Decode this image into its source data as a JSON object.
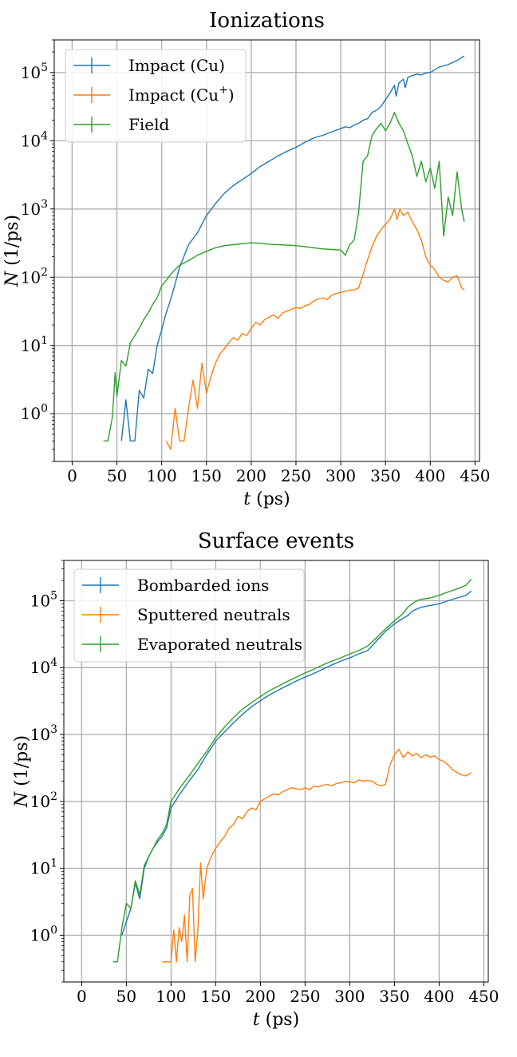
{
  "chart_data": [
    {
      "type": "line",
      "title": "Ionizations",
      "xlabel_var": "t",
      "xlabel_unit": " (ps)",
      "ylabel_var": "N",
      "ylabel_unit": " (1/ps)",
      "yscale": "log",
      "xlim": [
        -20,
        455
      ],
      "ylim": [
        0.2,
        300000
      ],
      "xticks": [
        0,
        50,
        100,
        150,
        200,
        250,
        300,
        350,
        400,
        450
      ],
      "yticks": [
        {
          "value": 1,
          "base": "10",
          "exp": "0"
        },
        {
          "value": 10,
          "base": "10",
          "exp": "1"
        },
        {
          "value": 100,
          "base": "10",
          "exp": "2"
        },
        {
          "value": 1000,
          "base": "10",
          "exp": "3"
        },
        {
          "value": 10000,
          "base": "10",
          "exp": "4"
        },
        {
          "value": 100000,
          "base": "10",
          "exp": "5"
        }
      ],
      "legend_position": "top-left",
      "series": [
        {
          "name": "Impact (Cu)",
          "legend_base": "Impact (Cu)",
          "legend_sup": "",
          "legend_tail": "",
          "color": "#1f77b4",
          "x": [
            55,
            60,
            65,
            70,
            75,
            80,
            85,
            90,
            95,
            100,
            105,
            110,
            115,
            120,
            130,
            140,
            150,
            160,
            170,
            180,
            190,
            200,
            210,
            220,
            230,
            240,
            250,
            260,
            270,
            280,
            290,
            300,
            305,
            310,
            315,
            320,
            325,
            330,
            335,
            340,
            345,
            350,
            355,
            360,
            362,
            365,
            370,
            372,
            375,
            380,
            385,
            390,
            395,
            400,
            405,
            410,
            415,
            420,
            425,
            430,
            435,
            438
          ],
          "y": [
            0.4,
            1.6,
            0.4,
            0.4,
            2.2,
            1.7,
            4.5,
            3.9,
            10,
            17,
            30,
            47,
            80,
            140,
            300,
            450,
            800,
            1200,
            1700,
            2200,
            2700,
            3300,
            4200,
            5000,
            6000,
            7000,
            8000,
            9500,
            11000,
            12000,
            13500,
            15000,
            16000,
            15500,
            17000,
            18000,
            20000,
            21000,
            26000,
            28000,
            32000,
            40000,
            50000,
            65000,
            45000,
            70000,
            80000,
            60000,
            85000,
            90000,
            95000,
            92000,
            98000,
            100000,
            110000,
            120000,
            125000,
            130000,
            140000,
            150000,
            165000,
            175000
          ]
        },
        {
          "name": "Impact (Cu+)",
          "legend_base": "Impact (Cu",
          "legend_sup": "+",
          "legend_tail": ")",
          "color": "#ff7f0e",
          "x": [
            105,
            110,
            115,
            120,
            125,
            130,
            135,
            140,
            145,
            150,
            155,
            160,
            165,
            170,
            175,
            180,
            185,
            190,
            195,
            200,
            205,
            210,
            215,
            220,
            225,
            230,
            235,
            240,
            245,
            250,
            255,
            260,
            265,
            270,
            275,
            280,
            285,
            290,
            295,
            300,
            305,
            310,
            315,
            320,
            325,
            330,
            335,
            340,
            345,
            350,
            355,
            360,
            363,
            366,
            370,
            375,
            380,
            385,
            390,
            395,
            400,
            405,
            410,
            415,
            420,
            425,
            430,
            435,
            438
          ],
          "y": [
            0.4,
            0.3,
            1.2,
            0.4,
            0.4,
            1.2,
            3.1,
            1.2,
            5.5,
            2,
            3.5,
            5.5,
            7.5,
            9,
            11,
            13,
            12,
            15,
            14,
            18,
            22,
            20,
            24,
            26,
            28,
            25,
            30,
            32,
            34,
            36,
            35,
            38,
            40,
            45,
            48,
            50,
            47,
            55,
            58,
            60,
            62,
            65,
            65,
            70,
            110,
            180,
            280,
            400,
            500,
            600,
            700,
            1000,
            700,
            1000,
            800,
            900,
            650,
            500,
            350,
            200,
            150,
            130,
            100,
            90,
            85,
            100,
            105,
            70,
            65
          ]
        },
        {
          "name": "Field",
          "legend_base": "Field",
          "legend_sup": "",
          "legend_tail": "",
          "color": "#2ca02c",
          "x": [
            35,
            40,
            45,
            48,
            50,
            55,
            60,
            65,
            70,
            75,
            80,
            85,
            90,
            95,
            100,
            105,
            110,
            115,
            120,
            130,
            140,
            150,
            160,
            170,
            180,
            190,
            200,
            210,
            220,
            230,
            240,
            250,
            260,
            270,
            280,
            290,
            300,
            305,
            310,
            315,
            320,
            325,
            330,
            335,
            340,
            345,
            350,
            355,
            360,
            365,
            370,
            375,
            380,
            385,
            390,
            395,
            400,
            405,
            410,
            415,
            420,
            425,
            430,
            435,
            438
          ],
          "y": [
            0.4,
            0.4,
            0.9,
            4,
            1.8,
            6,
            5,
            11,
            14,
            18,
            24,
            30,
            40,
            50,
            75,
            90,
            110,
            130,
            150,
            175,
            210,
            240,
            270,
            290,
            300,
            310,
            320,
            315,
            305,
            300,
            295,
            290,
            280,
            270,
            260,
            255,
            250,
            210,
            300,
            350,
            900,
            5000,
            6000,
            12000,
            15000,
            18000,
            14000,
            18000,
            26000,
            18000,
            14000,
            9000,
            6000,
            3000,
            5000,
            2500,
            4000,
            2000,
            5000,
            400,
            1500,
            800,
            3500,
            1000,
            650
          ]
        }
      ]
    },
    {
      "type": "line",
      "title": "Surface events",
      "xlabel_var": "t",
      "xlabel_unit": " (ps)",
      "ylabel_var": "N",
      "ylabel_unit": " (1/ps)",
      "yscale": "log",
      "xlim": [
        -20,
        455
      ],
      "ylim": [
        0.2,
        400000
      ],
      "xticks": [
        0,
        50,
        100,
        150,
        200,
        250,
        300,
        350,
        400,
        450
      ],
      "yticks": [
        {
          "value": 1,
          "base": "10",
          "exp": "0"
        },
        {
          "value": 10,
          "base": "10",
          "exp": "1"
        },
        {
          "value": 100,
          "base": "10",
          "exp": "2"
        },
        {
          "value": 1000,
          "base": "10",
          "exp": "3"
        },
        {
          "value": 10000,
          "base": "10",
          "exp": "4"
        },
        {
          "value": 100000,
          "base": "10",
          "exp": "5"
        }
      ],
      "legend_position": "top-left",
      "series": [
        {
          "name": "Bombarded ions",
          "legend_base": "Bombarded ions",
          "legend_sup": "",
          "legend_tail": "",
          "color": "#1f77b4",
          "x": [
            45,
            50,
            55,
            60,
            65,
            70,
            75,
            80,
            85,
            90,
            95,
            100,
            110,
            120,
            130,
            140,
            150,
            160,
            170,
            180,
            190,
            200,
            210,
            220,
            230,
            240,
            250,
            260,
            270,
            280,
            290,
            300,
            310,
            320,
            330,
            340,
            350,
            360,
            365,
            370,
            375,
            380,
            390,
            400,
            410,
            420,
            430,
            436
          ],
          "y": [
            1,
            1.6,
            2.5,
            6,
            3.5,
            10,
            15,
            20,
            25,
            30,
            40,
            80,
            130,
            200,
            300,
            500,
            800,
            1100,
            1500,
            2000,
            2600,
            3200,
            3900,
            4600,
            5400,
            6300,
            7200,
            8200,
            9500,
            11000,
            12500,
            14000,
            16000,
            18000,
            25000,
            35000,
            45000,
            55000,
            60000,
            70000,
            75000,
            80000,
            85000,
            90000,
            100000,
            110000,
            120000,
            140000
          ]
        },
        {
          "name": "Sputtered neutrals",
          "legend_base": "Sputtered neutrals",
          "legend_sup": "",
          "legend_tail": "",
          "color": "#ff7f0e",
          "x": [
            90,
            95,
            100,
            103,
            106,
            109,
            112,
            115,
            118,
            121,
            124,
            127,
            130,
            133,
            136,
            140,
            145,
            150,
            155,
            160,
            165,
            170,
            175,
            180,
            185,
            190,
            195,
            200,
            205,
            210,
            215,
            220,
            225,
            230,
            235,
            240,
            245,
            250,
            255,
            260,
            265,
            270,
            275,
            280,
            285,
            290,
            295,
            300,
            305,
            310,
            315,
            320,
            325,
            330,
            335,
            340,
            345,
            350,
            355,
            360,
            365,
            370,
            375,
            380,
            385,
            390,
            395,
            400,
            405,
            410,
            415,
            420,
            425,
            430,
            436
          ],
          "y": [
            0.4,
            0.4,
            0.4,
            1.2,
            0.4,
            1.3,
            0.8,
            2,
            0.4,
            4,
            5,
            0.4,
            1.2,
            12,
            3.5,
            10,
            15,
            20,
            25,
            30,
            40,
            45,
            60,
            55,
            70,
            80,
            75,
            100,
            110,
            120,
            130,
            125,
            140,
            150,
            160,
            155,
            150,
            160,
            150,
            170,
            165,
            175,
            180,
            170,
            185,
            190,
            200,
            195,
            190,
            210,
            200,
            205,
            200,
            180,
            170,
            180,
            350,
            500,
            600,
            450,
            550,
            480,
            520,
            450,
            500,
            460,
            480,
            420,
            400,
            350,
            300,
            270,
            250,
            240,
            270
          ]
        },
        {
          "name": "Evaporated neutrals",
          "legend_base": "Evaporated neutrals",
          "legend_sup": "",
          "legend_tail": "",
          "color": "#2ca02c",
          "x": [
            35,
            40,
            45,
            50,
            55,
            60,
            65,
            70,
            75,
            80,
            85,
            90,
            95,
            100,
            110,
            120,
            130,
            140,
            150,
            160,
            170,
            180,
            190,
            200,
            210,
            220,
            230,
            240,
            250,
            260,
            270,
            280,
            290,
            300,
            310,
            320,
            330,
            340,
            350,
            360,
            365,
            370,
            375,
            380,
            390,
            400,
            410,
            420,
            430,
            436
          ],
          "y": [
            0.4,
            0.4,
            1.3,
            3,
            2.5,
            6.5,
            4,
            11,
            15,
            20,
            27,
            33,
            45,
            100,
            160,
            240,
            370,
            560,
            900,
            1300,
            1800,
            2400,
            3000,
            3700,
            4500,
            5300,
            6200,
            7200,
            8300,
            9500,
            11000,
            12500,
            14000,
            16000,
            18000,
            21000,
            28000,
            38000,
            50000,
            65000,
            80000,
            90000,
            100000,
            105000,
            110000,
            120000,
            135000,
            150000,
            170000,
            210000
          ]
        }
      ]
    }
  ]
}
